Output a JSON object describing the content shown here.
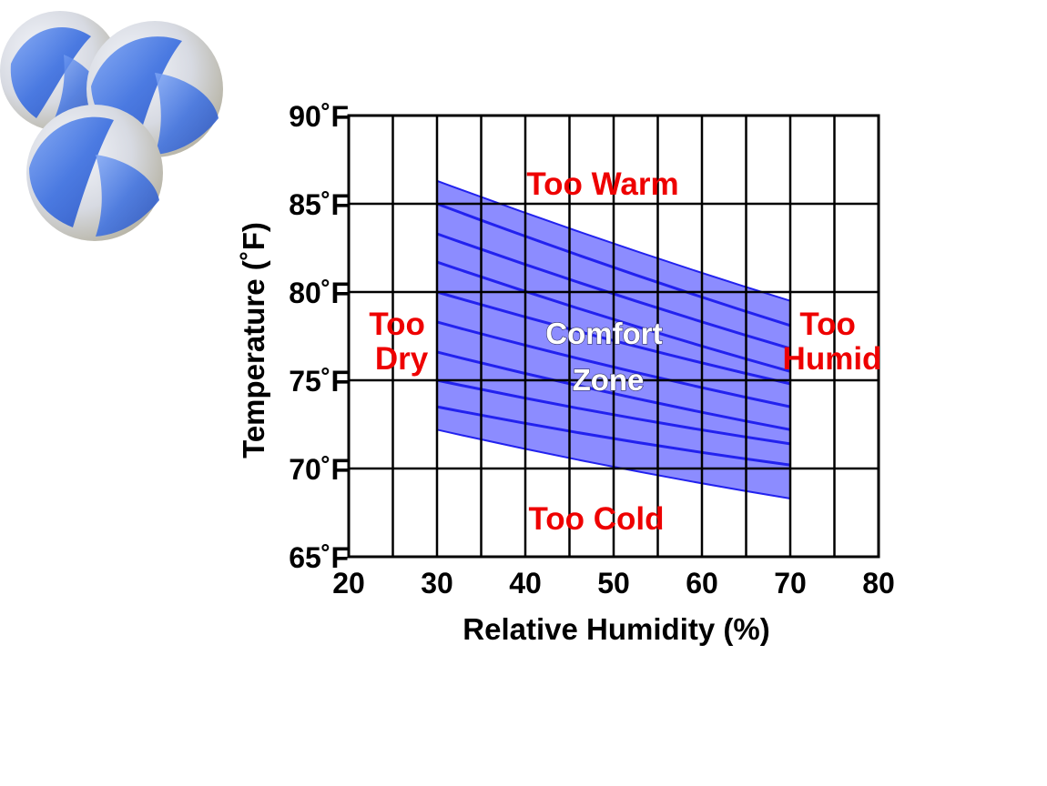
{
  "colors": {
    "zone_fill": "#8c8cff",
    "zone_stroke": "#2222ee",
    "grid": "#000000",
    "warning_text": "#ee0000",
    "zone_text": "#ffffff",
    "marble_blue": "#3a6ee0"
  },
  "decor": {
    "icon": "glass-marbles-icon"
  },
  "chart_data": {
    "type": "area",
    "title": "",
    "xlabel": "Relative Humidity (%)",
    "ylabel": "Temperature (˚F)",
    "xlim": [
      20,
      80
    ],
    "ylim": [
      65,
      90
    ],
    "x_ticks": [
      "20",
      "30",
      "40",
      "50",
      "60",
      "70",
      "80"
    ],
    "y_ticks": [
      "65˚F",
      "70˚F",
      "75˚F",
      "80˚F",
      "85˚F",
      "90˚F"
    ],
    "grid": true,
    "comfort_zone": {
      "upper": [
        {
          "x": 30,
          "y": 86.3
        },
        {
          "x": 70,
          "y": 79.5
        }
      ],
      "lower": [
        {
          "x": 30,
          "y": 72.2
        },
        {
          "x": 70,
          "y": 68.3
        }
      ],
      "stripe_lines": [
        [
          {
            "x": 30,
            "y": 85.0
          },
          {
            "x": 70,
            "y": 78.1
          }
        ],
        [
          {
            "x": 30,
            "y": 83.3
          },
          {
            "x": 70,
            "y": 76.8
          }
        ],
        [
          {
            "x": 30,
            "y": 81.7
          },
          {
            "x": 70,
            "y": 75.5
          }
        ],
        [
          {
            "x": 30,
            "y": 80.0
          },
          {
            "x": 70,
            "y": 74.8
          }
        ],
        [
          {
            "x": 30,
            "y": 78.3
          },
          {
            "x": 70,
            "y": 73.5
          }
        ],
        [
          {
            "x": 30,
            "y": 76.6
          },
          {
            "x": 70,
            "y": 72.2
          }
        ],
        [
          {
            "x": 30,
            "y": 75.0
          },
          {
            "x": 70,
            "y": 71.4
          }
        ],
        [
          {
            "x": 30,
            "y": 73.5
          },
          {
            "x": 70,
            "y": 70.2
          }
        ]
      ]
    },
    "annotations": {
      "too_warm": "Too Warm",
      "too_cold": "Too Cold",
      "too_dry": [
        "Too",
        "Dry"
      ],
      "too_humid": [
        "Too",
        "Humid"
      ],
      "comfort_zone": [
        "Comfort",
        "Zone"
      ]
    }
  }
}
